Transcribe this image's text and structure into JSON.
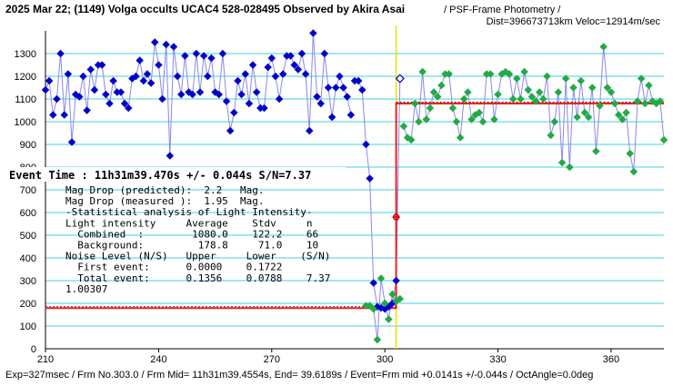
{
  "header": {
    "title_left": "2025 Mar 22; (1149) Volga occults UCAC4 528-028495 Observed by Akira Asai",
    "title_right": " / PSF-Frame Photometry /",
    "title_line2": "Dist=396673713km Veloc=12914m/sec"
  },
  "event_time": "Event Time : 11h31m39.470s  +/- 0.044s  S/N=7.37",
  "stats_lines": [
    "Mag Drop (predicted):  2.2   Mag.",
    "Mag Drop (measured ):  1.95  Mag.",
    "-Statistical analysis of Light Intensity-",
    "Light intensity     Average    Stdv     n",
    "  Combined  :        1080.0    122.2    66",
    "  Background:         178.8     71.0    10",
    "Noise Level (N/S)   Upper     Lower    (S/N)",
    "  First event:      0.0000    0.1722",
    "  Total event:      0.1356    0.0788    7.37",
    "1.00307"
  ],
  "footer": "Exp=327msec / Frm No.303.0 / Frm Mid= 11h31m39.4554s, End= 39.6189s / Event=Frm mid +0.0141s +/-0.044s / OctAngle=0.0deg",
  "chart_data": {
    "type": "scatter",
    "xlim": [
      210,
      374
    ],
    "ylim": [
      0,
      1400
    ],
    "x_ticks": [
      210,
      240,
      270,
      300,
      330,
      360
    ],
    "y_ticks": [
      0,
      100,
      200,
      300,
      400,
      500,
      600,
      700,
      800,
      900,
      1000,
      1100,
      1200,
      1300
    ],
    "grid": "horizontal",
    "event_x": 303,
    "pre_event_level": 178.8,
    "post_event_level": 1080.0,
    "series": [
      {
        "role": "pre-event",
        "color": "#0000cc",
        "x": [
          210,
          211,
          212,
          213,
          214,
          215,
          216,
          217,
          218,
          219,
          220,
          221,
          222,
          223,
          224,
          225,
          226,
          227,
          228,
          229,
          230,
          231,
          232,
          233,
          234,
          235,
          236,
          237,
          238,
          239,
          240,
          241,
          242,
          243,
          244,
          245,
          246,
          247,
          248,
          249,
          250,
          251,
          252,
          253,
          254,
          255,
          256,
          257,
          258,
          259,
          260,
          261,
          262,
          263,
          264,
          265,
          266,
          267,
          268,
          269,
          270,
          271,
          272,
          273,
          274,
          275,
          276,
          277,
          278,
          279,
          280,
          281,
          282,
          283,
          284,
          285,
          286,
          287,
          288,
          289,
          290,
          291
        ],
        "y": [
          1140,
          1180,
          1030,
          1100,
          1300,
          1030,
          1210,
          910,
          1120,
          1110,
          1200,
          1050,
          1230,
          1140,
          1250,
          1250,
          1120,
          1080,
          1180,
          1130,
          1130,
          1080,
          1060,
          1190,
          1200,
          1270,
          1180,
          1210,
          1170,
          1350,
          1250,
          1100,
          1340,
          850,
          1330,
          1200,
          1120,
          1290,
          1130,
          1120,
          1300,
          1130,
          1290,
          1200,
          1280,
          1130,
          1120,
          1300,
          1090,
          960,
          1040,
          1180,
          1120,
          1210,
          1080,
          1250,
          1130,
          1060,
          1060,
          1240,
          1280,
          1200,
          1100,
          1210,
          1290,
          1290,
          1250,
          1230,
          1300,
          1210,
          960,
          1390,
          1110,
          1080,
          1300,
          1150,
          1020,
          1150,
          1200,
          1150,
          1110,
          1030
        ]
      },
      {
        "role": "event",
        "color": "#0000cc",
        "x": [
          292,
          293,
          294,
          295,
          296,
          297,
          298,
          299,
          300,
          301,
          302,
          303,
          304
        ],
        "y": [
          1180,
          1180,
          1140,
          900,
          750,
          290,
          185,
          180,
          175,
          185,
          200,
          300,
          1190
        ]
      },
      {
        "role": "background",
        "color": "#22aa44",
        "x": [
          295,
          296,
          297,
          298,
          299,
          300,
          301,
          302,
          303,
          304
        ],
        "y": [
          190,
          190,
          175,
          40,
          310,
          200,
          130,
          240,
          210,
          220
        ]
      },
      {
        "role": "post-event",
        "color": "#22aa44",
        "x": [
          305,
          306,
          307,
          308,
          309,
          310,
          311,
          312,
          313,
          314,
          315,
          316,
          317,
          318,
          319,
          320,
          321,
          322,
          323,
          324,
          325,
          326,
          327,
          328,
          329,
          330,
          331,
          332,
          333,
          334,
          335,
          336,
          337,
          338,
          339,
          340,
          341,
          342,
          343,
          344,
          345,
          346,
          347,
          348,
          349,
          350,
          351,
          352,
          353,
          354,
          355,
          356,
          357,
          358,
          359,
          360,
          361,
          362,
          363,
          364,
          365,
          366,
          367,
          368,
          369,
          370,
          371,
          372,
          373,
          374
        ],
        "y": [
          980,
          930,
          920,
          1080,
          1000,
          1220,
          1010,
          1060,
          1130,
          1110,
          1160,
          1210,
          1210,
          1060,
          1000,
          930,
          1100,
          1130,
          1010,
          1030,
          1040,
          1000,
          1210,
          1210,
          1010,
          1120,
          1210,
          1220,
          1210,
          1100,
          1190,
          1100,
          1220,
          1140,
          1110,
          1090,
          1130,
          1100,
          1200,
          940,
          1000,
          1130,
          820,
          1190,
          800,
          1150,
          1020,
          1180,
          1040,
          1020,
          1150,
          870,
          1070,
          1330,
          1150,
          1130,
          1080,
          1030,
          1010,
          1040,
          860,
          780,
          1090,
          1190,
          1080,
          1160,
          1090,
          1080,
          1090,
          920
        ]
      }
    ]
  }
}
